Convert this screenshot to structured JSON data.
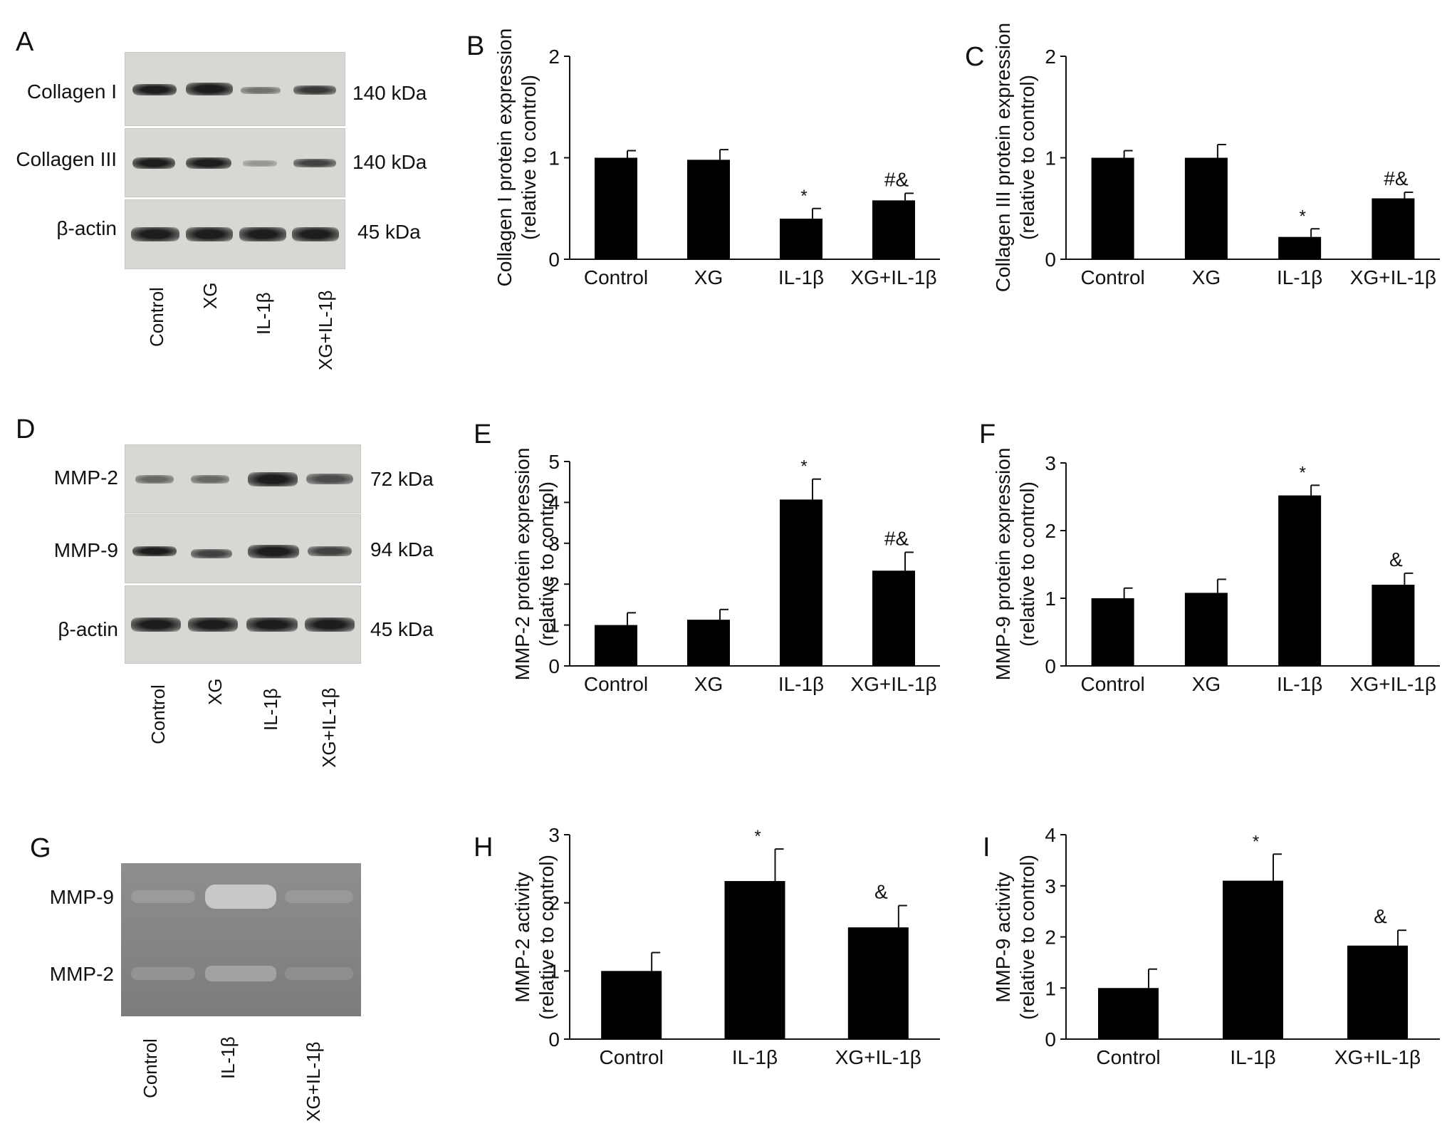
{
  "panels": {
    "A": {
      "letter": "A",
      "rows": [
        {
          "label": "Collagen I",
          "kda": "140 kDa"
        },
        {
          "label": "Collagen III",
          "kda": "140 kDa"
        },
        {
          "label": "β-actin",
          "kda": "45 kDa"
        }
      ],
      "lanes": [
        "Control",
        "XG",
        "IL-1β",
        "XG+IL-1β"
      ]
    },
    "D": {
      "letter": "D",
      "rows": [
        {
          "label": "MMP-2",
          "kda": "72 kDa"
        },
        {
          "label": "MMP-9",
          "kda": "94 kDa"
        },
        {
          "label": "β-actin",
          "kda": "45 kDa"
        }
      ],
      "lanes": [
        "Control",
        "XG",
        "IL-1β",
        "XG+IL-1β"
      ]
    },
    "G": {
      "letter": "G",
      "rows": [
        {
          "label": "MMP-9"
        },
        {
          "label": "MMP-2"
        }
      ],
      "lanes": [
        "Control",
        "IL-1β",
        "XG+IL-1β"
      ]
    }
  },
  "chart_data": [
    {
      "id": "B",
      "letter": "B",
      "type": "bar",
      "categories": [
        "Control",
        "XG",
        "IL-1β",
        "XG+IL-1β"
      ],
      "values": [
        1.0,
        0.98,
        0.4,
        0.58
      ],
      "errors": [
        0.07,
        0.1,
        0.1,
        0.07
      ],
      "annotations": [
        "",
        "",
        "*",
        "#&"
      ],
      "ylabel": [
        "Collagen I protein expression",
        "(relative to control)"
      ],
      "ylim": [
        0,
        2
      ],
      "yticks": [
        0,
        1,
        2
      ]
    },
    {
      "id": "C",
      "letter": "C",
      "type": "bar",
      "categories": [
        "Control",
        "XG",
        "IL-1β",
        "XG+IL-1β"
      ],
      "values": [
        1.0,
        1.0,
        0.22,
        0.6
      ],
      "errors": [
        0.07,
        0.13,
        0.08,
        0.06
      ],
      "annotations": [
        "",
        "",
        "*",
        "#&"
      ],
      "ylabel": [
        "Collagen III protein expression",
        "(relative to control)"
      ],
      "ylim": [
        0,
        2
      ],
      "yticks": [
        0,
        1,
        2
      ]
    },
    {
      "id": "E",
      "letter": "E",
      "type": "bar",
      "categories": [
        "Control",
        "XG",
        "IL-1β",
        "XG+IL-1β"
      ],
      "values": [
        1.0,
        1.13,
        4.07,
        2.33
      ],
      "errors": [
        0.3,
        0.25,
        0.5,
        0.45
      ],
      "annotations": [
        "",
        "",
        "*",
        "#&"
      ],
      "ylabel": [
        "MMP-2 protein expression",
        "(relative to control)"
      ],
      "ylim": [
        0,
        5
      ],
      "yticks": [
        0,
        1,
        2,
        3,
        4,
        5
      ]
    },
    {
      "id": "F",
      "letter": "F",
      "type": "bar",
      "categories": [
        "Control",
        "XG",
        "IL-1β",
        "XG+IL-1β"
      ],
      "values": [
        1.0,
        1.08,
        2.52,
        1.2
      ],
      "errors": [
        0.15,
        0.2,
        0.15,
        0.17
      ],
      "annotations": [
        "",
        "",
        "*",
        "&"
      ],
      "ylabel": [
        "MMP-9 protein expression",
        "(relative to control)"
      ],
      "ylim": [
        0,
        3
      ],
      "yticks": [
        0,
        1,
        2,
        3
      ]
    },
    {
      "id": "H",
      "letter": "H",
      "type": "bar",
      "categories": [
        "Control",
        "IL-1β",
        "XG+IL-1β"
      ],
      "values": [
        1.0,
        2.32,
        1.64
      ],
      "errors": [
        0.27,
        0.47,
        0.32
      ],
      "annotations": [
        "",
        "*",
        "&"
      ],
      "ylabel": [
        "MMP-2 activity",
        "(relative to control)"
      ],
      "ylim": [
        0,
        3
      ],
      "yticks": [
        0,
        1,
        2,
        3
      ]
    },
    {
      "id": "I",
      "letter": "I",
      "type": "bar",
      "categories": [
        "Control",
        "IL-1β",
        "XG+IL-1β"
      ],
      "values": [
        1.0,
        3.1,
        1.83
      ],
      "errors": [
        0.37,
        0.52,
        0.3
      ],
      "annotations": [
        "",
        "*",
        "&"
      ],
      "ylabel": [
        "MMP-9 activity",
        "(relative to control)"
      ],
      "ylim": [
        0,
        4
      ],
      "yticks": [
        0,
        1,
        2,
        3,
        4
      ]
    }
  ]
}
